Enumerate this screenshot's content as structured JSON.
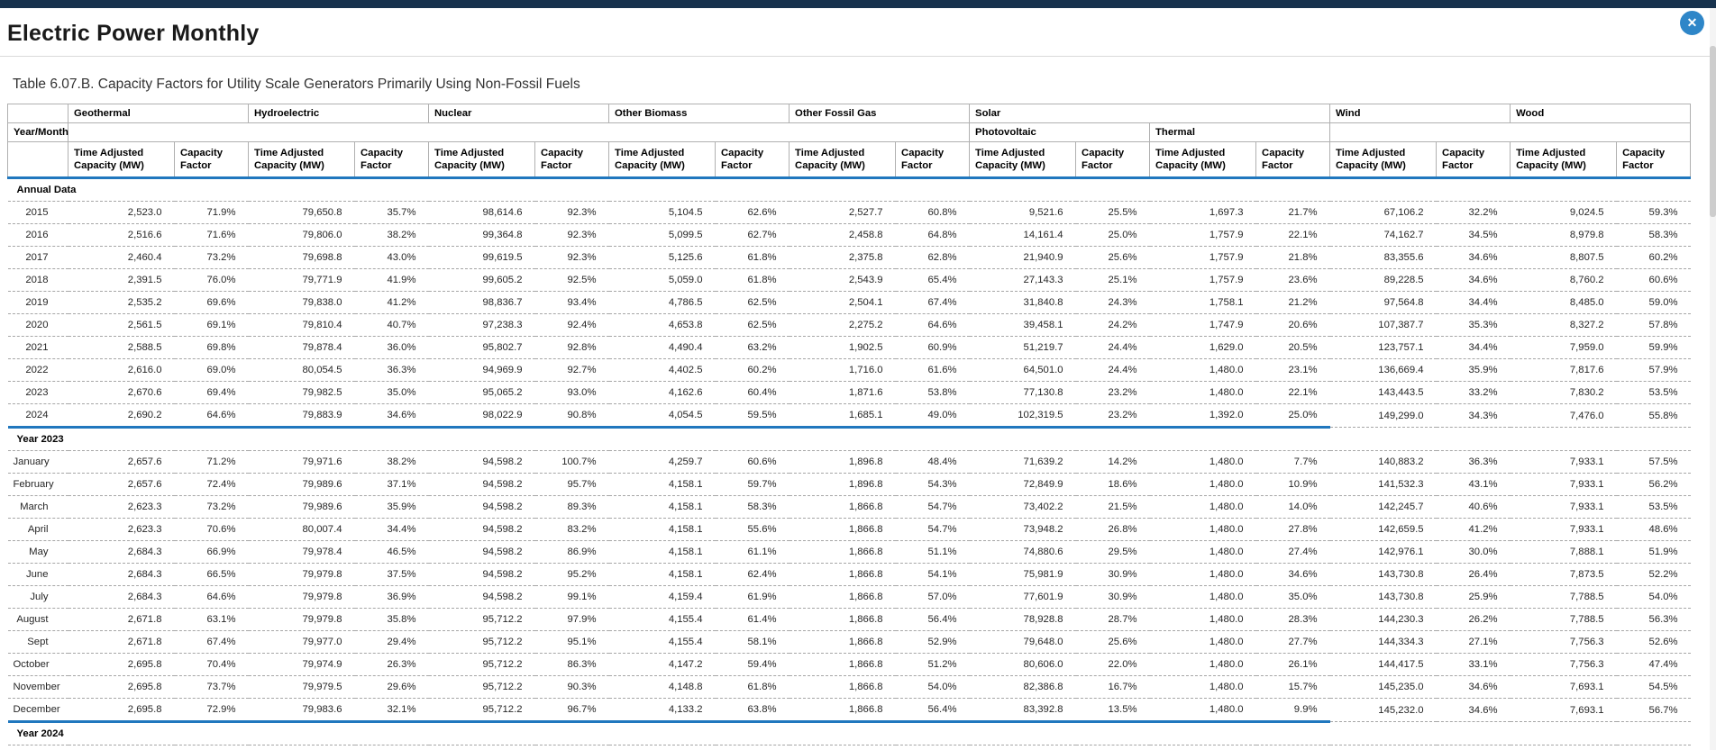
{
  "page": {
    "title": "Electric Power Monthly",
    "close_glyph": "✕"
  },
  "colors": {
    "topbar_navy": "#17324d",
    "close_button_blue": "#2e86c8",
    "header_accent_blue": "#2077be",
    "dashed_divider_gray": "#a6a6a6"
  },
  "table": {
    "caption": "Table 6.07.B. Capacity Factors for Utility Scale Generators Primarily Using Non-Fossil Fuels",
    "row_header": "Year/Month",
    "col_groups": [
      "Geothermal",
      "Hydroelectric",
      "Nuclear",
      "Other Biomass",
      "Other Fossil Gas",
      "Solar",
      "Wind",
      "Wood"
    ],
    "solar_subgroups": [
      "Photovoltaic",
      "Thermal"
    ],
    "metric_headers": [
      "Time Adjusted Capacity (MW)",
      "Capacity Factor"
    ],
    "column_order_note": "values arrays: Geothermal TAC, Geothermal CF, Hydroelectric TAC, Hydroelectric CF, Nuclear TAC, Nuclear CF, Other Biomass TAC, Other Biomass CF, Other Fossil Gas TAC, Other Fossil Gas CF, Solar Photovoltaic TAC, Solar Photovoltaic CF, Solar Thermal TAC, Solar Thermal CF, Wind TAC, Wind CF, Wood TAC, Wood CF",
    "sections": [
      {
        "label": "Annual Data",
        "rows": [
          {
            "label": "2015",
            "values": [
              "2,523.0",
              "71.9%",
              "79,650.8",
              "35.7%",
              "98,614.6",
              "92.3%",
              "5,104.5",
              "62.6%",
              "2,527.7",
              "60.8%",
              "9,521.6",
              "25.5%",
              "1,697.3",
              "21.7%",
              "67,106.2",
              "32.2%",
              "9,024.5",
              "59.3%"
            ]
          },
          {
            "label": "2016",
            "values": [
              "2,516.6",
              "71.6%",
              "79,806.0",
              "38.2%",
              "99,364.8",
              "92.3%",
              "5,099.5",
              "62.7%",
              "2,458.8",
              "64.8%",
              "14,161.4",
              "25.0%",
              "1,757.9",
              "22.1%",
              "74,162.7",
              "34.5%",
              "8,979.8",
              "58.3%"
            ]
          },
          {
            "label": "2017",
            "values": [
              "2,460.4",
              "73.2%",
              "79,698.8",
              "43.0%",
              "99,619.5",
              "92.3%",
              "5,125.6",
              "61.8%",
              "2,375.8",
              "62.8%",
              "21,940.9",
              "25.6%",
              "1,757.9",
              "21.8%",
              "83,355.6",
              "34.6%",
              "8,807.5",
              "60.2%"
            ]
          },
          {
            "label": "2018",
            "values": [
              "2,391.5",
              "76.0%",
              "79,771.9",
              "41.9%",
              "99,605.2",
              "92.5%",
              "5,059.0",
              "61.8%",
              "2,543.9",
              "65.4%",
              "27,143.3",
              "25.1%",
              "1,757.9",
              "23.6%",
              "89,228.5",
              "34.6%",
              "8,760.2",
              "60.6%"
            ]
          },
          {
            "label": "2019",
            "values": [
              "2,535.2",
              "69.6%",
              "79,838.0",
              "41.2%",
              "98,836.7",
              "93.4%",
              "4,786.5",
              "62.5%",
              "2,504.1",
              "67.4%",
              "31,840.8",
              "24.3%",
              "1,758.1",
              "21.2%",
              "97,564.8",
              "34.4%",
              "8,485.0",
              "59.0%"
            ]
          },
          {
            "label": "2020",
            "values": [
              "2,561.5",
              "69.1%",
              "79,810.4",
              "40.7%",
              "97,238.3",
              "92.4%",
              "4,653.8",
              "62.5%",
              "2,275.2",
              "64.6%",
              "39,458.1",
              "24.2%",
              "1,747.9",
              "20.6%",
              "107,387.7",
              "35.3%",
              "8,327.2",
              "57.8%"
            ]
          },
          {
            "label": "2021",
            "values": [
              "2,588.5",
              "69.8%",
              "79,878.4",
              "36.0%",
              "95,802.7",
              "92.8%",
              "4,490.4",
              "63.2%",
              "1,902.5",
              "60.9%",
              "51,219.7",
              "24.4%",
              "1,629.0",
              "20.5%",
              "123,757.1",
              "34.4%",
              "7,959.0",
              "59.9%"
            ]
          },
          {
            "label": "2022",
            "values": [
              "2,616.0",
              "69.0%",
              "80,054.5",
              "36.3%",
              "94,969.9",
              "92.7%",
              "4,402.5",
              "60.2%",
              "1,716.0",
              "61.6%",
              "64,501.0",
              "24.4%",
              "1,480.0",
              "23.1%",
              "136,669.4",
              "35.9%",
              "7,817.6",
              "57.9%"
            ]
          },
          {
            "label": "2023",
            "values": [
              "2,670.6",
              "69.4%",
              "79,982.5",
              "35.0%",
              "95,065.2",
              "93.0%",
              "4,162.6",
              "60.4%",
              "1,871.6",
              "53.8%",
              "77,130.8",
              "23.2%",
              "1,480.0",
              "22.1%",
              "143,443.5",
              "33.2%",
              "7,830.2",
              "53.5%"
            ]
          },
          {
            "label": "2024",
            "values": [
              "2,690.2",
              "64.6%",
              "79,883.9",
              "34.6%",
              "98,022.9",
              "90.8%",
              "4,054.5",
              "59.5%",
              "1,685.1",
              "49.0%",
              "102,319.5",
              "23.2%",
              "1,392.0",
              "25.0%",
              "149,299.0",
              "34.3%",
              "7,476.0",
              "55.8%"
            ]
          }
        ]
      },
      {
        "label": "Year 2023",
        "rows": [
          {
            "label": "January",
            "values": [
              "2,657.6",
              "71.2%",
              "79,971.6",
              "38.2%",
              "94,598.2",
              "100.7%",
              "4,259.7",
              "60.6%",
              "1,896.8",
              "48.4%",
              "71,639.2",
              "14.2%",
              "1,480.0",
              "7.7%",
              "140,883.2",
              "36.3%",
              "7,933.1",
              "57.5%"
            ]
          },
          {
            "label": "February",
            "values": [
              "2,657.6",
              "72.4%",
              "79,989.6",
              "37.1%",
              "94,598.2",
              "95.7%",
              "4,158.1",
              "59.7%",
              "1,896.8",
              "54.3%",
              "72,849.9",
              "18.6%",
              "1,480.0",
              "10.9%",
              "141,532.3",
              "43.1%",
              "7,933.1",
              "56.2%"
            ]
          },
          {
            "label": "March",
            "values": [
              "2,623.3",
              "73.2%",
              "79,989.6",
              "35.9%",
              "94,598.2",
              "89.3%",
              "4,158.1",
              "58.3%",
              "1,866.8",
              "54.7%",
              "73,402.2",
              "21.5%",
              "1,480.0",
              "14.0%",
              "142,245.7",
              "40.6%",
              "7,933.1",
              "53.5%"
            ]
          },
          {
            "label": "April",
            "values": [
              "2,623.3",
              "70.6%",
              "80,007.4",
              "34.4%",
              "94,598.2",
              "83.2%",
              "4,158.1",
              "55.6%",
              "1,866.8",
              "54.7%",
              "73,948.2",
              "26.8%",
              "1,480.0",
              "27.8%",
              "142,659.5",
              "41.2%",
              "7,933.1",
              "48.6%"
            ]
          },
          {
            "label": "May",
            "values": [
              "2,684.3",
              "66.9%",
              "79,978.4",
              "46.5%",
              "94,598.2",
              "86.9%",
              "4,158.1",
              "61.1%",
              "1,866.8",
              "51.1%",
              "74,880.6",
              "29.5%",
              "1,480.0",
              "27.4%",
              "142,976.1",
              "30.0%",
              "7,888.1",
              "51.9%"
            ]
          },
          {
            "label": "June",
            "values": [
              "2,684.3",
              "66.5%",
              "79,979.8",
              "37.5%",
              "94,598.2",
              "95.2%",
              "4,158.1",
              "62.4%",
              "1,866.8",
              "54.1%",
              "75,981.9",
              "30.9%",
              "1,480.0",
              "34.6%",
              "143,730.8",
              "26.4%",
              "7,873.5",
              "52.2%"
            ]
          },
          {
            "label": "July",
            "values": [
              "2,684.3",
              "64.6%",
              "79,979.8",
              "36.9%",
              "94,598.2",
              "99.1%",
              "4,159.4",
              "61.9%",
              "1,866.8",
              "57.0%",
              "77,601.9",
              "30.9%",
              "1,480.0",
              "35.0%",
              "143,730.8",
              "25.9%",
              "7,788.5",
              "54.0%"
            ]
          },
          {
            "label": "August",
            "values": [
              "2,671.8",
              "63.1%",
              "79,979.8",
              "35.8%",
              "95,712.2",
              "97.9%",
              "4,155.4",
              "61.4%",
              "1,866.8",
              "56.4%",
              "78,928.8",
              "28.7%",
              "1,480.0",
              "28.3%",
              "144,230.3",
              "26.2%",
              "7,788.5",
              "56.3%"
            ]
          },
          {
            "label": "Sept",
            "values": [
              "2,671.8",
              "67.4%",
              "79,977.0",
              "29.4%",
              "95,712.2",
              "95.1%",
              "4,155.4",
              "58.1%",
              "1,866.8",
              "52.9%",
              "79,648.0",
              "25.6%",
              "1,480.0",
              "27.7%",
              "144,334.3",
              "27.1%",
              "7,756.3",
              "52.6%"
            ]
          },
          {
            "label": "October",
            "values": [
              "2,695.8",
              "70.4%",
              "79,974.9",
              "26.3%",
              "95,712.2",
              "86.3%",
              "4,147.2",
              "59.4%",
              "1,866.8",
              "51.2%",
              "80,606.0",
              "22.0%",
              "1,480.0",
              "26.1%",
              "144,417.5",
              "33.1%",
              "7,756.3",
              "47.4%"
            ]
          },
          {
            "label": "November",
            "values": [
              "2,695.8",
              "73.7%",
              "79,979.5",
              "29.6%",
              "95,712.2",
              "90.3%",
              "4,148.8",
              "61.8%",
              "1,866.8",
              "54.0%",
              "82,386.8",
              "16.7%",
              "1,480.0",
              "15.7%",
              "145,235.0",
              "34.6%",
              "7,693.1",
              "54.5%"
            ]
          },
          {
            "label": "December",
            "values": [
              "2,695.8",
              "72.9%",
              "79,983.6",
              "32.1%",
              "95,712.2",
              "96.7%",
              "4,133.2",
              "63.8%",
              "1,866.8",
              "56.4%",
              "83,392.8",
              "13.5%",
              "1,480.0",
              "9.9%",
              "145,232.0",
              "34.6%",
              "7,693.1",
              "56.7%"
            ]
          }
        ]
      },
      {
        "label": "Year 2024",
        "rows": []
      }
    ]
  }
}
